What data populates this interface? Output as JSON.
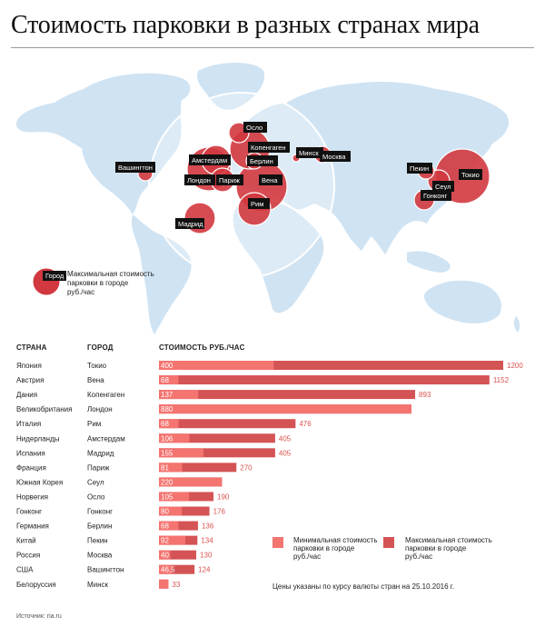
{
  "title": "Стоимость парковки в разных странах мира",
  "map_legend": {
    "bubble_label": "Город",
    "text": [
      "Максимальная стоимость",
      "парковки в городе",
      "руб./час"
    ]
  },
  "colors": {
    "min_bar": "#f47470",
    "max_bar": "#d45355",
    "bubble": "#d1383f",
    "land": "#cfe3f3",
    "label_bg": "#111111"
  },
  "chart_data": {
    "type": "bar",
    "orientation": "horizontal",
    "columns": {
      "country": "СТРАНА",
      "city": "ГОРОД",
      "cost": "СТОИМОСТЬ РУБ./ЧАС"
    },
    "series": [
      {
        "name": "Минимальная стоимость парковки в городе руб./час",
        "key": "min"
      },
      {
        "name": "Максимальная стоимость парковки в городе руб./час",
        "key": "max"
      }
    ],
    "xlim": [
      0,
      1200
    ],
    "rows": [
      {
        "country": "Япония",
        "city": "Токио",
        "min": 400,
        "max": 1200,
        "min_label": "400",
        "max_label": "1200"
      },
      {
        "country": "Австрия",
        "city": "Вена",
        "min": 68,
        "max": 1152,
        "min_label": "68",
        "max_label": "1152"
      },
      {
        "country": "Дания",
        "city": "Копенгаген",
        "min": 137,
        "max": 893,
        "min_label": "137",
        "max_label": "893"
      },
      {
        "country": "Великобритания",
        "city": "Лондон",
        "min": 880,
        "max": 880,
        "min_label": "880",
        "max_label": ""
      },
      {
        "country": "Италия",
        "city": "Рим",
        "min": 68,
        "max": 476,
        "min_label": "68",
        "max_label": "476"
      },
      {
        "country": "Нидерланды",
        "city": "Амстердам",
        "min": 106,
        "max": 405,
        "min_label": "106",
        "max_label": "405"
      },
      {
        "country": "Испания",
        "city": "Мадрид",
        "min": 155,
        "max": 405,
        "min_label": "155",
        "max_label": "405"
      },
      {
        "country": "Франция",
        "city": "Париж",
        "min": 81,
        "max": 270,
        "min_label": "81",
        "max_label": "270"
      },
      {
        "country": "Южная Корея",
        "city": "Сеул",
        "min": 220,
        "max": 220,
        "min_label": "220",
        "max_label": ""
      },
      {
        "country": "Норвегия",
        "city": "Осло",
        "min": 105,
        "max": 190,
        "min_label": "105",
        "max_label": "190"
      },
      {
        "country": "Гонконг",
        "city": "Гонконг",
        "min": 80,
        "max": 176,
        "min_label": "80",
        "max_label": "176"
      },
      {
        "country": "Германия",
        "city": "Берлин",
        "min": 68,
        "max": 136,
        "min_label": "68",
        "max_label": "136"
      },
      {
        "country": "Китай",
        "city": "Пекин",
        "min": 92,
        "max": 134,
        "min_label": "92",
        "max_label": "134"
      },
      {
        "country": "Россия",
        "city": "Москва",
        "min": 40,
        "max": 130,
        "min_label": "40",
        "max_label": "130"
      },
      {
        "country": "США",
        "city": "Вашингтон",
        "min": 46.5,
        "max": 124,
        "min_label": "46,5",
        "max_label": "124"
      },
      {
        "country": "Белоруссия",
        "city": "Минск",
        "min": 33,
        "max": 33,
        "min_label": "",
        "max_label": "33"
      }
    ],
    "legend": {
      "min": [
        "Минимальная стоимость",
        "парковки в городе",
        "руб./час"
      ],
      "max": [
        "Максимальная стоимость",
        "парковки в городе",
        "руб./час"
      ]
    }
  },
  "note": "Цены указаны по курсу валюты стран на 25.10.2016 г.",
  "source": "Источник: ria.ru"
}
